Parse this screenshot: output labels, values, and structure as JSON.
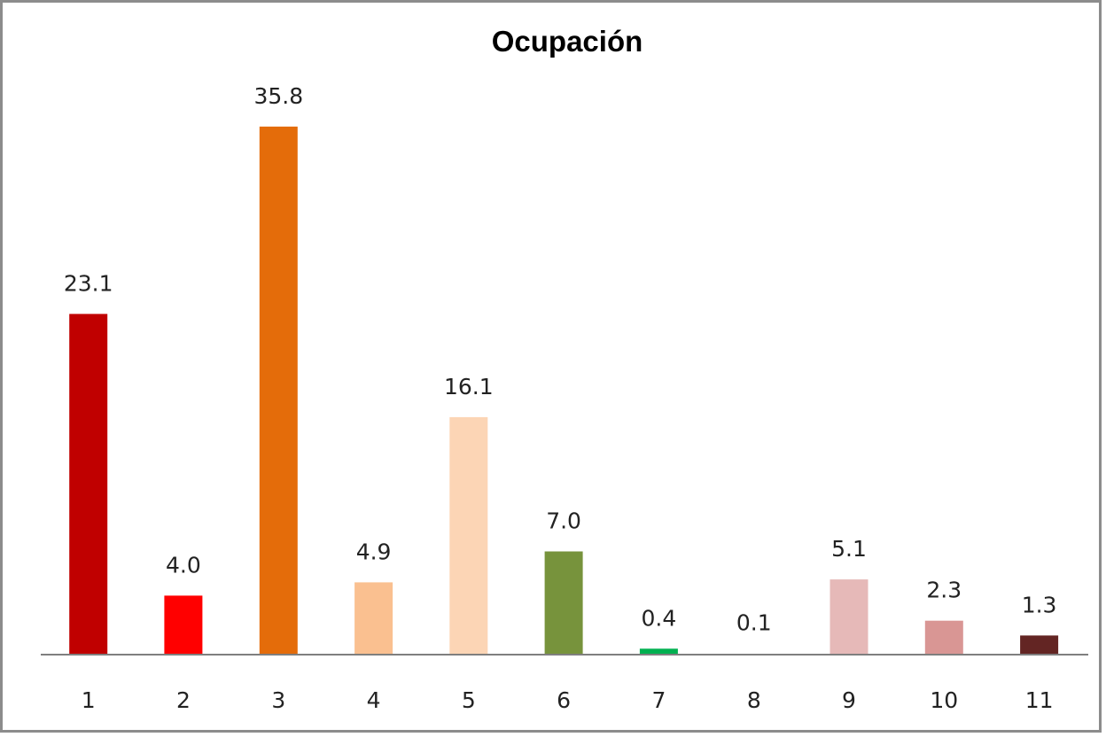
{
  "chart_data": {
    "type": "bar",
    "title": "Ocupación",
    "categories": [
      "1",
      "2",
      "3",
      "4",
      "5",
      "6",
      "7",
      "8",
      "9",
      "10",
      "11"
    ],
    "values": [
      23.1,
      4.0,
      35.8,
      4.9,
      16.1,
      7.0,
      0.4,
      0.1,
      5.1,
      2.3,
      1.3
    ],
    "value_labels": [
      "23.1",
      "4.0",
      "35.8",
      "4.9",
      "16.1",
      "7.0",
      "0.4",
      "0.1",
      "5.1",
      "2.3",
      "1.3"
    ],
    "colors": [
      "#c00000",
      "#ff0000",
      "#e46c0a",
      "#fac090",
      "#fcd5b5",
      "#77933c",
      "#00b050",
      "#ffffff",
      "#e6b9b8",
      "#d99694",
      "#632523"
    ],
    "xlabel": "",
    "ylabel": "",
    "ylim": [
      0,
      38
    ],
    "grid": false,
    "legend": "none"
  }
}
